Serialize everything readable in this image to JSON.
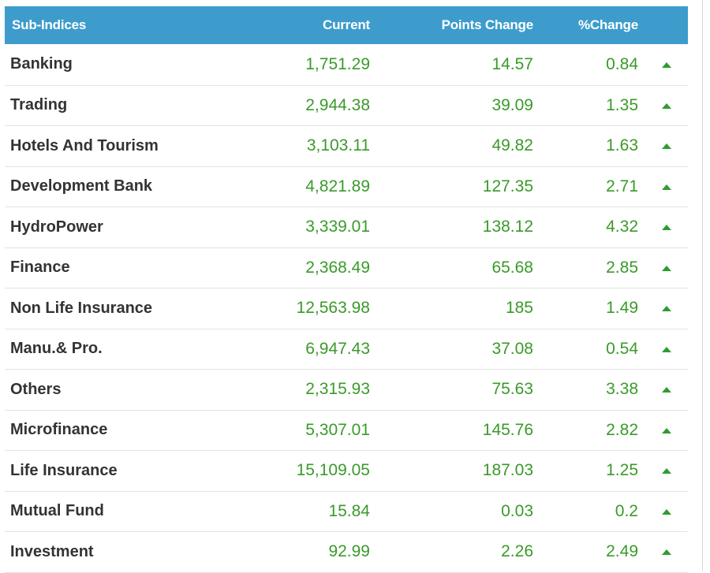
{
  "table": {
    "headers": {
      "name": "Sub-Indices",
      "current": "Current",
      "points_change": "Points Change",
      "pct_change": "%Change"
    },
    "rows": [
      {
        "name": "Banking",
        "current": "1,751.29",
        "points_change": "14.57",
        "pct_change": "0.84",
        "trend": "up"
      },
      {
        "name": "Trading",
        "current": "2,944.38",
        "points_change": "39.09",
        "pct_change": "1.35",
        "trend": "up"
      },
      {
        "name": "Hotels And Tourism",
        "current": "3,103.11",
        "points_change": "49.82",
        "pct_change": "1.63",
        "trend": "up"
      },
      {
        "name": "Development Bank",
        "current": "4,821.89",
        "points_change": "127.35",
        "pct_change": "2.71",
        "trend": "up"
      },
      {
        "name": "HydroPower",
        "current": "3,339.01",
        "points_change": "138.12",
        "pct_change": "4.32",
        "trend": "up"
      },
      {
        "name": "Finance",
        "current": "2,368.49",
        "points_change": "65.68",
        "pct_change": "2.85",
        "trend": "up"
      },
      {
        "name": "Non Life Insurance",
        "current": "12,563.98",
        "points_change": "185",
        "pct_change": "1.49",
        "trend": "up"
      },
      {
        "name": "Manu.& Pro.",
        "current": "6,947.43",
        "points_change": "37.08",
        "pct_change": "0.54",
        "trend": "up"
      },
      {
        "name": "Others",
        "current": "2,315.93",
        "points_change": "75.63",
        "pct_change": "3.38",
        "trend": "up"
      },
      {
        "name": "Microfinance",
        "current": "5,307.01",
        "points_change": "145.76",
        "pct_change": "2.82",
        "trend": "up"
      },
      {
        "name": "Life Insurance",
        "current": "15,109.05",
        "points_change": "187.03",
        "pct_change": "1.25",
        "trend": "up"
      },
      {
        "name": "Mutual Fund",
        "current": "15.84",
        "points_change": "0.03",
        "pct_change": "0.2",
        "trend": "up"
      },
      {
        "name": "Investment",
        "current": "92.99",
        "points_change": "2.26",
        "pct_change": "2.49",
        "trend": "up"
      }
    ]
  },
  "colors": {
    "header_bg": "#3d9ccc",
    "header_text": "#ffffff",
    "value_green": "#3a9a2a",
    "up_arrow": "#2e9d2e",
    "name_text": "#333333"
  },
  "icons": {
    "trend_up": "triangle-up-icon"
  }
}
